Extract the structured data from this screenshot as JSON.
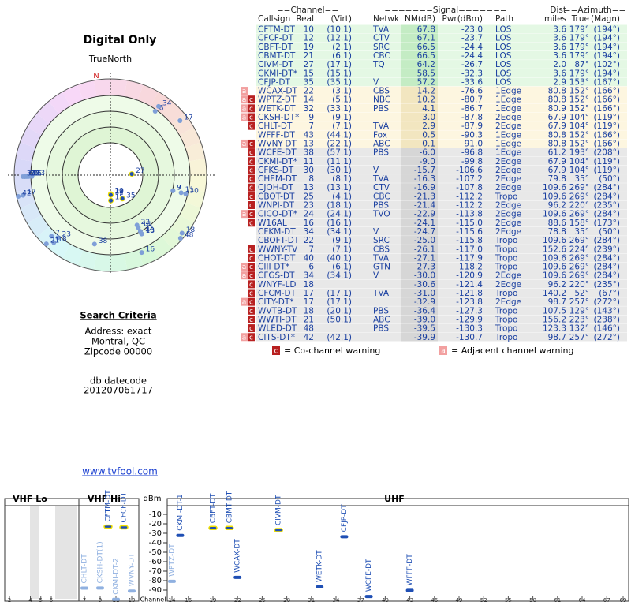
{
  "header": {
    "title": "Digital Only",
    "north_label": "TrueNorth",
    "north_marker": "N"
  },
  "table": {
    "group_headers": [
      "==Channel==",
      "=======Signal=======",
      "Dist",
      "==Azimuth=="
    ],
    "columns": [
      "Callsign",
      "Real",
      "(Virt)",
      "Netwk",
      "NM(dB)",
      "Pwr(dBm)",
      "Path",
      "miles",
      "True",
      "(Magn)"
    ],
    "rows": [
      [
        "CFTM-DT",
        "10",
        "(10.1)",
        "TVA",
        "67.8",
        "-23.0",
        "LOS",
        "3.6",
        "179°",
        "(194°)"
      ],
      [
        "CFCF-DT",
        "12",
        "(12.1)",
        "CTV",
        "67.1",
        "-23.7",
        "LOS",
        "3.6",
        "179°",
        "(194°)"
      ],
      [
        "CBFT-DT",
        "19",
        "(2.1)",
        "SRC",
        "66.5",
        "-24.4",
        "LOS",
        "3.6",
        "179°",
        "(194°)"
      ],
      [
        "CBMT-DT",
        "21",
        "(6.1)",
        "CBC",
        "66.5",
        "-24.4",
        "LOS",
        "3.6",
        "179°",
        "(194°)"
      ],
      [
        "CIVM-DT",
        "27",
        "(17.1)",
        "TQ",
        "64.2",
        "-26.7",
        "LOS",
        "2.0",
        "87°",
        "(102°)"
      ],
      [
        "CKMI-DT*",
        "15",
        "(15.1)",
        "",
        "58.5",
        "-32.3",
        "LOS",
        "3.6",
        "179°",
        "(194°)"
      ],
      [
        "CFJP-DT",
        "35",
        "(35.1)",
        "V",
        "57.2",
        "-33.6",
        "LOS",
        "2.9",
        "153°",
        "(167°)"
      ],
      [
        "WCAX-DT",
        "22",
        "(3.1)",
        "CBS",
        "14.2",
        "-76.6",
        "1Edge",
        "80.8",
        "152°",
        "(166°)"
      ],
      [
        "WPTZ-DT",
        "14",
        "(5.1)",
        "NBC",
        "10.2",
        "-80.7",
        "1Edge",
        "80.8",
        "152°",
        "(166°)"
      ],
      [
        "WETK-DT",
        "32",
        "(33.1)",
        "PBS",
        "4.1",
        "-86.7",
        "1Edge",
        "80.9",
        "152°",
        "(166°)"
      ],
      [
        "CKSH-DT*",
        "9",
        "(9.1)",
        "",
        "3.0",
        "-87.8",
        "2Edge",
        "67.9",
        "104°",
        "(119°)"
      ],
      [
        "CHLT-DT",
        "7",
        "(7.1)",
        "TVA",
        "2.9",
        "-87.9",
        "2Edge",
        "67.9",
        "104°",
        "(119°)"
      ],
      [
        "WFFF-DT",
        "43",
        "(44.1)",
        "Fox",
        "0.5",
        "-90.3",
        "1Edge",
        "80.8",
        "152°",
        "(166°)"
      ],
      [
        "WVNY-DT",
        "13",
        "(22.1)",
        "ABC",
        "-0.1",
        "-91.0",
        "1Edge",
        "80.8",
        "152°",
        "(166°)"
      ],
      [
        "WCFE-DT",
        "38",
        "(57.1)",
        "PBS",
        "-6.0",
        "-96.8",
        "1Edge",
        "61.2",
        "193°",
        "(208°)"
      ],
      [
        "CKMI-DT*",
        "11",
        "(11.1)",
        "",
        "-9.0",
        "-99.8",
        "2Edge",
        "67.9",
        "104°",
        "(119°)"
      ],
      [
        "CFKS-DT",
        "30",
        "(30.1)",
        "V",
        "-15.7",
        "-106.6",
        "2Edge",
        "67.9",
        "104°",
        "(119°)"
      ],
      [
        "CHEM-DT",
        "8",
        "(8.1)",
        "TVA",
        "-16.3",
        "-107.2",
        "2Edge",
        "79.8",
        "35°",
        "(50°)"
      ],
      [
        "CJOH-DT",
        "13",
        "(13.1)",
        "CTV",
        "-16.9",
        "-107.8",
        "2Edge",
        "109.6",
        "269°",
        "(284°)"
      ],
      [
        "CBOT-DT",
        "25",
        "(4.1)",
        "CBC",
        "-21.3",
        "-112.2",
        "Tropo",
        "109.6",
        "269°",
        "(284°)"
      ],
      [
        "WNPI-DT",
        "23",
        "(18.1)",
        "PBS",
        "-21.4",
        "-112.2",
        "2Edge",
        "96.2",
        "220°",
        "(235°)"
      ],
      [
        "CICO-DT*",
        "24",
        "(24.1)",
        "TVO",
        "-22.9",
        "-113.8",
        "2Edge",
        "109.6",
        "269°",
        "(284°)"
      ],
      [
        "W16AL",
        "16",
        "(16.1)",
        "",
        "-24.1",
        "-115.0",
        "2Edge",
        "88.6",
        "158°",
        "(173°)"
      ],
      [
        "CFKM-DT",
        "34",
        "(34.1)",
        "V",
        "-24.7",
        "-115.6",
        "2Edge",
        "78.8",
        "35°",
        "(50°)"
      ],
      [
        "CBOFT-DT",
        "22",
        "(9.1)",
        "SRC",
        "-25.0",
        "-115.8",
        "Tropo",
        "109.6",
        "269°",
        "(284°)"
      ],
      [
        "WWNY-TV",
        "7",
        "(7.1)",
        "CBS",
        "-26.1",
        "-117.0",
        "Tropo",
        "152.6",
        "224°",
        "(239°)"
      ],
      [
        "CHOT-DT",
        "40",
        "(40.1)",
        "TVA",
        "-27.1",
        "-117.9",
        "Tropo",
        "109.6",
        "269°",
        "(284°)"
      ],
      [
        "CIII-DT*",
        "6",
        "(6.1)",
        "GTN",
        "-27.3",
        "-118.2",
        "Tropo",
        "109.6",
        "269°",
        "(284°)"
      ],
      [
        "CFGS-DT",
        "34",
        "(34.1)",
        "V",
        "-30.0",
        "-120.9",
        "2Edge",
        "109.6",
        "269°",
        "(284°)"
      ],
      [
        "WNYF-LD",
        "18",
        "",
        "",
        "-30.6",
        "-121.4",
        "2Edge",
        "96.2",
        "220°",
        "(235°)"
      ],
      [
        "CFCM-DT",
        "17",
        "(17.1)",
        "TVA",
        "-31.0",
        "-121.8",
        "Tropo",
        "140.2",
        "52°",
        "(67°)"
      ],
      [
        "CITY-DT*",
        "17",
        "(17.1)",
        "",
        "-32.9",
        "-123.8",
        "2Edge",
        "98.7",
        "257°",
        "(272°)"
      ],
      [
        "WVTB-DT",
        "18",
        "(20.1)",
        "PBS",
        "-36.4",
        "-127.3",
        "Tropo",
        "107.5",
        "129°",
        "(143°)"
      ],
      [
        "WWTI-DT",
        "21",
        "(50.1)",
        "ABC",
        "-39.0",
        "-129.9",
        "Tropo",
        "156.2",
        "223°",
        "(238°)"
      ],
      [
        "WLED-DT",
        "48",
        "",
        "PBS",
        "-39.5",
        "-130.3",
        "Tropo",
        "123.3",
        "132°",
        "(146°)"
      ],
      [
        "CITS-DT*",
        "42",
        "(42.1)",
        "",
        "-39.9",
        "-130.7",
        "Tropo",
        "98.7",
        "257°",
        "(272°)"
      ]
    ],
    "warnings": [
      [],
      [],
      [],
      [],
      [],
      [],
      [],
      [
        "a"
      ],
      [
        "a",
        "c"
      ],
      [
        "a",
        "c"
      ],
      [
        "a",
        "c"
      ],
      [
        "c"
      ],
      [],
      [
        "a",
        "c"
      ],
      [
        "c"
      ],
      [
        "c"
      ],
      [
        "c"
      ],
      [
        "c"
      ],
      [
        "c"
      ],
      [
        "c"
      ],
      [
        "c"
      ],
      [
        "a",
        "c"
      ],
      [
        "c"
      ],
      [],
      [],
      [
        "c"
      ],
      [
        "c"
      ],
      [
        "a",
        "c"
      ],
      [
        "a",
        "c"
      ],
      [
        "c"
      ],
      [
        "c"
      ],
      [
        "a",
        "c"
      ],
      [
        "c"
      ],
      [
        "c"
      ],
      [
        "c"
      ],
      [
        "a",
        "c"
      ]
    ]
  },
  "legend": {
    "co_channel": {
      "icon": "c",
      "label": "= Co-channel warning"
    },
    "adjacent": {
      "icon": "a",
      "label": "= Adjacent channel warning"
    }
  },
  "search": {
    "title": "Search Criteria",
    "lines": [
      "Address: exact",
      "Montral, QC",
      "Zipcode 00000"
    ],
    "datecode_label": "db datecode",
    "datecode": "201207061717"
  },
  "link": "www.tvfool.com",
  "chart_data": {
    "type": "spectrum",
    "y_label": "dBm",
    "x_label": "Channel",
    "ylim": [
      0,
      -100
    ],
    "yticks": [
      -10,
      -20,
      -30,
      -40,
      -50,
      -60,
      -70,
      -80,
      -90
    ],
    "bands": [
      {
        "label": "VHF Lo",
        "xlim": [
          2,
          6
        ],
        "xticks": [
          2,
          4,
          5,
          6
        ]
      },
      {
        "label": "VHF Hi",
        "xlim": [
          7,
          13
        ],
        "xticks": [
          7,
          9,
          11,
          13
        ]
      },
      {
        "label": "UHF",
        "xlim": [
          14,
          69
        ],
        "xticks": [
          14,
          16,
          19,
          22,
          25,
          28,
          31,
          34,
          37,
          40,
          43,
          46,
          49,
          52,
          55,
          58,
          61,
          64,
          67,
          69
        ]
      }
    ],
    "stations": [
      {
        "name": "CHLT-DT",
        "channel": 7,
        "value": -87.9,
        "color": "#8fb0e0"
      },
      {
        "name": "CKSH-DT(1)",
        "channel": 9,
        "value": -87.8,
        "color": "#8fb0e0"
      },
      {
        "name": "CFTM-DT",
        "channel": 10,
        "value": -23.0,
        "color": "#1f4fb4"
      },
      {
        "name": "CKMI-DT-2",
        "channel": 11,
        "value": -99.8,
        "color": "#8fb0e0"
      },
      {
        "name": "CFCF-DT",
        "channel": 12,
        "value": -23.7,
        "color": "#1f4fb4"
      },
      {
        "name": "WVNY-DT",
        "channel": 13,
        "value": -91.0,
        "color": "#8fb0e0"
      },
      {
        "name": "WPTZ-DT",
        "channel": 14,
        "value": -80.7,
        "color": "#8fb0e0"
      },
      {
        "name": "CKMI-DT-1",
        "channel": 15,
        "value": -32.3,
        "color": "#1f4fb4"
      },
      {
        "name": "CBFT-DT",
        "channel": 19,
        "value": -24.4,
        "color": "#1f4fb4"
      },
      {
        "name": "CBMT-DT",
        "channel": 21,
        "value": -24.4,
        "color": "#1f4fb4"
      },
      {
        "name": "WCAX-DT",
        "channel": 22,
        "value": -76.6,
        "color": "#1f4fb4"
      },
      {
        "name": "CIVM-DT",
        "channel": 27,
        "value": -26.7,
        "color": "#1f4fb4"
      },
      {
        "name": "WETK-DT",
        "channel": 32,
        "value": -86.7,
        "color": "#1f4fb4"
      },
      {
        "name": "CFJP-DT",
        "channel": 35,
        "value": -33.6,
        "color": "#1f4fb4"
      },
      {
        "name": "WCFE-DT",
        "channel": 38,
        "value": -96.8,
        "color": "#1f4fb4"
      },
      {
        "name": "WFFF-DT",
        "channel": 43,
        "value": -90.3,
        "color": "#1f4fb4"
      }
    ]
  }
}
